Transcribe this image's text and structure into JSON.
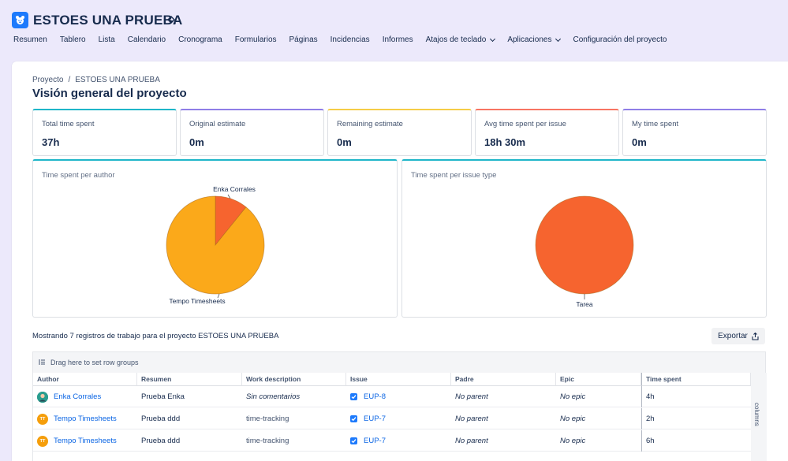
{
  "project": {
    "title": "ESTOES UNA PRUEBA"
  },
  "nav": [
    {
      "label": "Resumen",
      "dropdown": false
    },
    {
      "label": "Tablero",
      "dropdown": false
    },
    {
      "label": "Lista",
      "dropdown": false
    },
    {
      "label": "Calendario",
      "dropdown": false
    },
    {
      "label": "Cronograma",
      "dropdown": false
    },
    {
      "label": "Formularios",
      "dropdown": false
    },
    {
      "label": "Páginas",
      "dropdown": false
    },
    {
      "label": "Incidencias",
      "dropdown": false
    },
    {
      "label": "Informes",
      "dropdown": false
    },
    {
      "label": "Atajos de teclado",
      "dropdown": true
    },
    {
      "label": "Aplicaciones",
      "dropdown": true
    },
    {
      "label": "Configuración del proyecto",
      "dropdown": false
    }
  ],
  "breadcrumb": {
    "root": "Proyecto",
    "separator": "/",
    "current": "ESTOES UNA PRUEBA"
  },
  "page_title": "Visión general del proyecto",
  "stats": [
    {
      "label": "Total time spent",
      "value": "37h",
      "color": "#1fb6c9"
    },
    {
      "label": "Original estimate",
      "value": "0m",
      "color": "#8f7ee7"
    },
    {
      "label": "Remaining estimate",
      "value": "0m",
      "color": "#f5cd47"
    },
    {
      "label": "Avg time spent per issue",
      "value": "18h 30m",
      "color": "#f87462"
    },
    {
      "label": "My time spent",
      "value": "0m",
      "color": "#8f7ee7"
    }
  ],
  "charts": {
    "author_title": "Time spent per author",
    "issue_type_title": "Time spent per issue type"
  },
  "chart_data": [
    {
      "type": "pie",
      "title": "Time spent per author",
      "categories": [
        "Enka Corrales",
        "Tempo Timesheets"
      ],
      "values": [
        4,
        33
      ],
      "colors": [
        "#f6642f",
        "#fba91a"
      ]
    },
    {
      "type": "pie",
      "title": "Time spent per issue type",
      "categories": [
        "Tarea"
      ],
      "values": [
        37
      ],
      "colors": [
        "#f6642f"
      ]
    }
  ],
  "records_text": "Mostrando 7 registros de trabajo para el proyecto ESTOES UNA PRUEBA",
  "export_label": "Exportar",
  "group_hint": "Drag here to set row groups",
  "columns_label": "columns",
  "table": {
    "headers": [
      "Author",
      "Resumen",
      "Work description",
      "Issue",
      "Padre",
      "Epic",
      "Time spent"
    ],
    "rows": [
      {
        "author": "Enka Corrales",
        "avatar": "",
        "avatar_color": "#2a9d8f",
        "resumen": "Prueba Enka",
        "desc": "Sin comentarios",
        "desc_italic": true,
        "issue": "EUP-8",
        "padre": "No parent",
        "epic": "No epic",
        "time": "4h"
      },
      {
        "author": "Tempo Timesheets",
        "avatar": "TT",
        "avatar_color": "#f59e0b",
        "resumen": "Prueba ddd",
        "desc": "time-tracking",
        "desc_italic": false,
        "issue": "EUP-7",
        "padre": "No parent",
        "epic": "No epic",
        "time": "2h"
      },
      {
        "author": "Tempo Timesheets",
        "avatar": "TT",
        "avatar_color": "#f59e0b",
        "resumen": "Prueba ddd",
        "desc": "time-tracking",
        "desc_italic": false,
        "issue": "EUP-7",
        "padre": "No parent",
        "epic": "No epic",
        "time": "6h"
      }
    ]
  }
}
